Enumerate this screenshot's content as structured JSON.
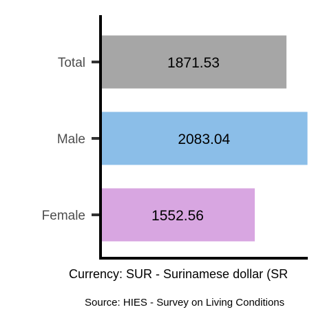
{
  "chart_data": {
    "type": "bar",
    "orientation": "horizontal",
    "categories": [
      "Total",
      "Male",
      "Female"
    ],
    "values": [
      1871.53,
      2083.04,
      1552.56
    ],
    "value_labels": [
      "1871.53",
      "2083.04",
      "1552.56"
    ],
    "colors": [
      "#a6a6a6",
      "#8bbee8",
      "#d8a6e1"
    ],
    "xlabel": "Currency: SUR - Surinamese dollar (SR",
    "caption": "Source:  HIES - Survey on Living Conditions",
    "xlim": [
      0,
      2100
    ],
    "grid": false,
    "legend": "none"
  }
}
